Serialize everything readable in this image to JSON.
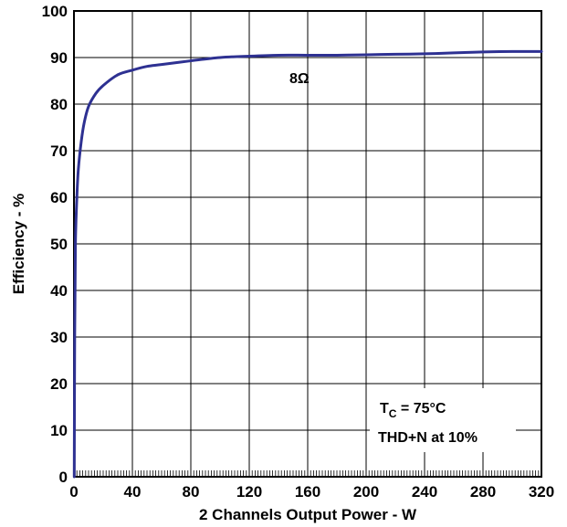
{
  "chart_data": {
    "type": "line",
    "title": "",
    "xlabel": "2 Channels Output Power - W",
    "ylabel": "Efficiency - %",
    "xlim": [
      0,
      320
    ],
    "ylim": [
      0,
      100
    ],
    "x_ticks": [
      "0",
      "40",
      "80",
      "120",
      "160",
      "200",
      "240",
      "280",
      "320"
    ],
    "y_ticks": [
      "0",
      "10",
      "20",
      "30",
      "40",
      "50",
      "60",
      "70",
      "80",
      "90",
      "100"
    ],
    "grid": true,
    "series": [
      {
        "name": "8Ω",
        "color": "#2e3192",
        "x": [
          0.2,
          0.5,
          1,
          2,
          3,
          5,
          7,
          10,
          15,
          20,
          30,
          40,
          50,
          60,
          80,
          100,
          120,
          140,
          160,
          180,
          200,
          220,
          240,
          260,
          280,
          300,
          320
        ],
        "y": [
          0,
          30,
          50,
          60,
          66,
          72,
          76,
          79.5,
          82.3,
          84,
          86.3,
          87.3,
          88.1,
          88.5,
          89.3,
          90,
          90.3,
          90.5,
          90.5,
          90.5,
          90.6,
          90.7,
          90.8,
          91,
          91.2,
          91.3,
          91.3
        ]
      }
    ],
    "annotations": {
      "series_label": "8Ω",
      "tc_main": "T",
      "tc_sub": "C",
      "tc_rest": " = 75°C",
      "thd": "THD+N at 10%"
    }
  }
}
